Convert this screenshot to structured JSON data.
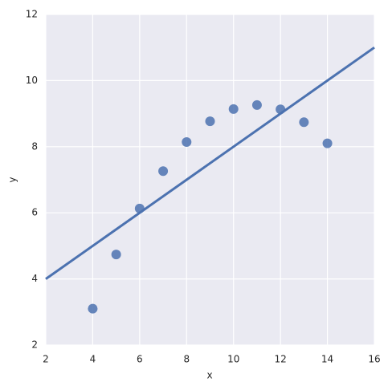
{
  "chart_data": {
    "type": "scatter",
    "xlabel": "x",
    "ylabel": "y",
    "points": {
      "color": "#4c72b0",
      "x": [
        4,
        5,
        6,
        7,
        8,
        9,
        10,
        11,
        12,
        13,
        14
      ],
      "values": [
        3.1,
        4.74,
        6.13,
        7.26,
        8.14,
        8.77,
        9.14,
        9.26,
        9.13,
        8.74,
        8.1
      ]
    },
    "fit_line": {
      "color": "#4c72b0",
      "x": [
        2,
        16
      ],
      "values": [
        4,
        11
      ]
    },
    "xlim": [
      2,
      16
    ],
    "xticks": [
      2,
      4,
      6,
      8,
      10,
      12,
      14,
      16
    ],
    "ylim": [
      2,
      12
    ],
    "yticks": [
      2,
      4,
      6,
      8,
      10,
      12
    ],
    "grid": true
  }
}
